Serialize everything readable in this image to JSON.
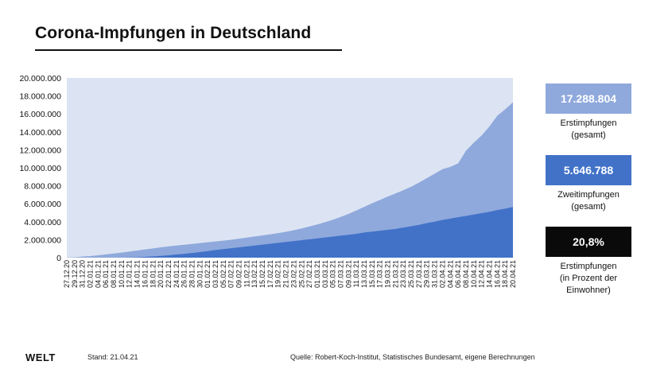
{
  "header": {
    "title": "Corona-Impfungen in Deutschland"
  },
  "colors": {
    "background_area": "#dce4f3",
    "first_doses": "#8fa9dc",
    "second_doses": "#4272c8",
    "box_first": "#8fa9dc",
    "box_second": "#4272c8",
    "box_percent": "#0a0a0a"
  },
  "stats": [
    {
      "value": "17.288.804",
      "label_lines": [
        "Erstimpfungen",
        "(gesamt)"
      ]
    },
    {
      "value": "5.646.788",
      "label_lines": [
        "Zweitimpfungen",
        "(gesamt)"
      ]
    },
    {
      "value": "20,8%",
      "label_lines": [
        "Erstimpfungen",
        "(in Prozent der",
        "Einwohner)"
      ]
    }
  ],
  "footer": {
    "logo": "WELT",
    "stand": "Stand:  21.04.21",
    "source": "Quelle: Robert-Koch-Institut, Statistisches Bundesamt, eigene Berechnungen"
  },
  "chart_data": {
    "type": "area",
    "title": "Corona-Impfungen in Deutschland",
    "xlabel": "",
    "ylabel": "",
    "ylim": [
      0,
      20000000
    ],
    "y_ticks": [
      "0",
      "2.000.000",
      "4.000.000",
      "6.000.000",
      "8.000.000",
      "10.000.000",
      "12.000.000",
      "14.000.000",
      "16.000.000",
      "18.000.000",
      "20.000.000"
    ],
    "x_tick_labels": [
      "27.12.20",
      "29.12.20",
      "31.12.20",
      "02.01.21",
      "04.01.21",
      "06.01.21",
      "08.01.21",
      "10.01.21",
      "12.01.21",
      "14.01.21",
      "16.01.21",
      "18.01.21",
      "20.01.21",
      "22.01.21",
      "24.01.21",
      "26.01.21",
      "28.01.21",
      "30.01.21",
      "01.02.21",
      "03.02.21",
      "05.02.21",
      "07.02.21",
      "09.02.21",
      "11.02.21",
      "13.02.21",
      "15.02.21",
      "17.02.21",
      "19.02.21",
      "21.02.21",
      "23.02.21",
      "25.02.21",
      "27.02.21",
      "01.03.21",
      "03.03.21",
      "05.03.21",
      "07.03.21",
      "09.03.21",
      "11.03.21",
      "13.03.21",
      "15.03.21",
      "17.03.21",
      "19.03.21",
      "21.03.21",
      "23.03.21",
      "25.03.21",
      "27.03.21",
      "29.03.21",
      "31.03.21",
      "02.04.21",
      "04.04.21",
      "06.04.21",
      "08.04.21",
      "10.04.21",
      "12.04.21",
      "14.04.21",
      "16.04.21",
      "18.04.21",
      "20.04.21"
    ],
    "x": [
      "27.12.20",
      "29.12.20",
      "31.12.20",
      "02.01.21",
      "04.01.21",
      "06.01.21",
      "08.01.21",
      "10.01.21",
      "12.01.21",
      "14.01.21",
      "16.01.21",
      "18.01.21",
      "20.01.21",
      "22.01.21",
      "24.01.21",
      "26.01.21",
      "28.01.21",
      "30.01.21",
      "01.02.21",
      "03.02.21",
      "05.02.21",
      "07.02.21",
      "09.02.21",
      "11.02.21",
      "13.02.21",
      "15.02.21",
      "17.02.21",
      "19.02.21",
      "21.02.21",
      "23.02.21",
      "25.02.21",
      "27.02.21",
      "01.03.21",
      "03.03.21",
      "05.03.21",
      "07.03.21",
      "09.03.21",
      "11.03.21",
      "13.03.21",
      "15.03.21",
      "17.03.21",
      "19.03.21",
      "21.03.21",
      "23.03.21",
      "25.03.21",
      "27.03.21",
      "29.03.21",
      "31.03.21",
      "02.04.21",
      "04.04.21",
      "06.04.21",
      "08.04.21",
      "10.04.21",
      "12.04.21",
      "14.04.21",
      "16.04.21",
      "18.04.21",
      "20.04.21"
    ],
    "series": [
      {
        "name": "Erstimpfungen",
        "values": [
          20000,
          50000,
          120000,
          180000,
          260000,
          360000,
          470000,
          560000,
          680000,
          800000,
          920000,
          1030000,
          1150000,
          1250000,
          1350000,
          1440000,
          1530000,
          1620000,
          1710000,
          1800000,
          1890000,
          1990000,
          2110000,
          2230000,
          2360000,
          2480000,
          2600000,
          2730000,
          2880000,
          3050000,
          3250000,
          3470000,
          3700000,
          3950000,
          4220000,
          4530000,
          4870000,
          5250000,
          5650000,
          6050000,
          6420000,
          6800000,
          7150000,
          7500000,
          7900000,
          8350000,
          8850000,
          9350000,
          9850000,
          10100000,
          10500000,
          11900000,
          12800000,
          13600000,
          14600000,
          15800000,
          16500000,
          17288804
        ]
      },
      {
        "name": "Zweitimpfungen",
        "values": [
          0,
          0,
          0,
          0,
          0,
          0,
          0,
          0,
          20000,
          50000,
          90000,
          140000,
          200000,
          270000,
          350000,
          430000,
          520000,
          620000,
          730000,
          850000,
          950000,
          1050000,
          1150000,
          1250000,
          1350000,
          1450000,
          1550000,
          1650000,
          1750000,
          1850000,
          1950000,
          2050000,
          2150000,
          2250000,
          2350000,
          2450000,
          2550000,
          2650000,
          2800000,
          2900000,
          3000000,
          3100000,
          3200000,
          3350000,
          3500000,
          3650000,
          3850000,
          4000000,
          4200000,
          4350000,
          4500000,
          4650000,
          4800000,
          4950000,
          5100000,
          5300000,
          5450000,
          5646788
        ]
      }
    ]
  }
}
